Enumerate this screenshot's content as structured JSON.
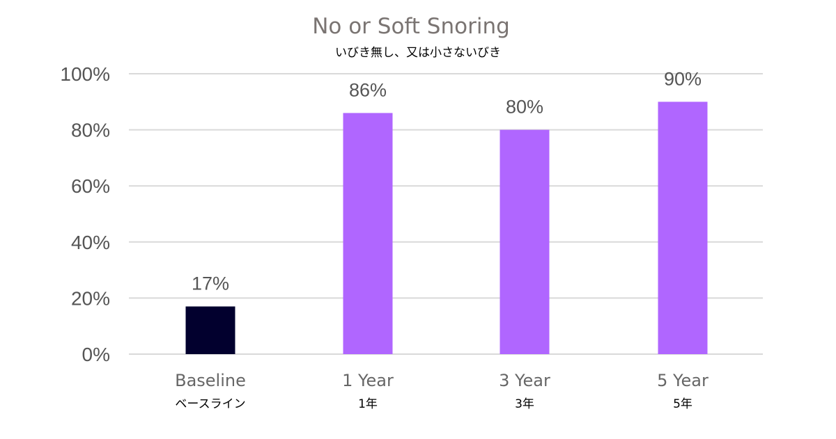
{
  "chart_data": {
    "type": "bar",
    "title": "No or Soft Snoring",
    "subtitle": "いびき無し、又は小さないびき",
    "categories": [
      "Baseline",
      "1 Year",
      "3 Year",
      "5 Year"
    ],
    "categories_jp": [
      "ベースライン",
      "1年",
      "3年",
      "5年"
    ],
    "values": [
      17,
      86,
      80,
      90
    ],
    "value_labels": [
      "17%",
      "86%",
      "80%",
      "90%"
    ],
    "bar_colors": [
      "#02002e",
      "#b066ff",
      "#b066ff",
      "#b066ff"
    ],
    "ylim": [
      0,
      100
    ],
    "yticks": [
      0,
      20,
      40,
      60,
      80,
      100
    ],
    "ytick_labels": [
      "0%",
      "20%",
      "40%",
      "60%",
      "80%",
      "100%"
    ],
    "grid": true,
    "grid_color": "#d9d9d9"
  }
}
